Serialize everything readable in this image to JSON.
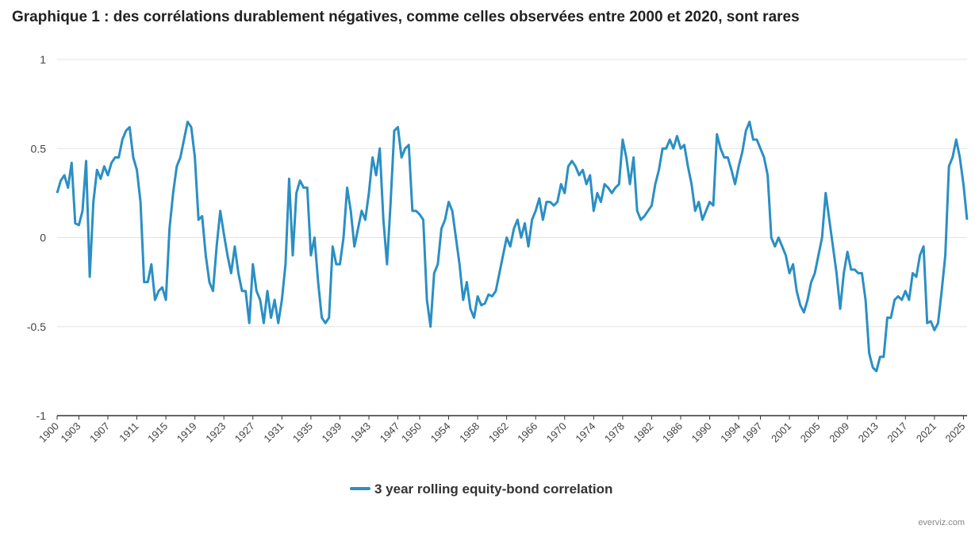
{
  "chart_data": {
    "type": "line",
    "title": "Graphique 1 : des corrélations durablement négatives, comme celles observées entre 2000 et 2020, sont rares",
    "credit": "everviz.com",
    "x": [
      1900,
      1900.5,
      1901,
      1901.5,
      1902,
      1902.5,
      1903,
      1903.5,
      1904,
      1904.5,
      1905,
      1905.5,
      1906,
      1906.5,
      1907,
      1907.5,
      1908,
      1908.5,
      1909,
      1909.5,
      1910,
      1910.5,
      1911,
      1911.5,
      1912,
      1912.5,
      1913,
      1913.5,
      1914,
      1914.5,
      1915,
      1915.5,
      1916,
      1916.5,
      1917,
      1917.5,
      1918,
      1918.5,
      1919,
      1919.5,
      1920,
      1920.5,
      1921,
      1921.5,
      1922,
      1922.5,
      1923,
      1923.5,
      1924,
      1924.5,
      1925,
      1925.5,
      1926,
      1926.5,
      1927,
      1927.5,
      1928,
      1928.5,
      1929,
      1929.5,
      1930,
      1930.5,
      1931,
      1931.5,
      1932,
      1932.5,
      1933,
      1933.5,
      1934,
      1934.5,
      1935,
      1935.5,
      1936,
      1936.5,
      1937,
      1937.5,
      1938,
      1938.5,
      1939,
      1939.5,
      1940,
      1940.5,
      1941,
      1941.5,
      1942,
      1942.5,
      1943,
      1943.5,
      1944,
      1944.5,
      1945,
      1945.5,
      1946,
      1946.5,
      1947,
      1947.5,
      1948,
      1948.5,
      1949,
      1949.5,
      1950,
      1950.5,
      1951,
      1951.5,
      1952,
      1952.5,
      1953,
      1953.5,
      1954,
      1954.5,
      1955,
      1955.5,
      1956,
      1956.5,
      1957,
      1957.5,
      1958,
      1958.5,
      1959,
      1959.5,
      1960,
      1960.5,
      1961,
      1961.5,
      1962,
      1962.5,
      1963,
      1963.5,
      1964,
      1964.5,
      1965,
      1965.5,
      1966,
      1966.5,
      1967,
      1967.5,
      1968,
      1968.5,
      1969,
      1969.5,
      1970,
      1970.5,
      1971,
      1971.5,
      1972,
      1972.5,
      1973,
      1973.5,
      1974,
      1974.5,
      1975,
      1975.5,
      1976,
      1976.5,
      1977,
      1977.5,
      1978,
      1978.5,
      1979,
      1979.5,
      1980,
      1980.5,
      1981,
      1981.5,
      1982,
      1982.5,
      1983,
      1983.5,
      1984,
      1984.5,
      1985,
      1985.5,
      1986,
      1986.5,
      1987,
      1987.5,
      1988,
      1988.5,
      1989,
      1989.5,
      1990,
      1990.5,
      1991,
      1991.5,
      1992,
      1992.5,
      1993,
      1993.5,
      1994,
      1994.5,
      1995,
      1995.5,
      1996,
      1996.5,
      1997,
      1997.5,
      1998,
      1998.5,
      1999,
      1999.5,
      2000,
      2000.5,
      2001,
      2001.5,
      2002,
      2002.5,
      2003,
      2003.5,
      2004,
      2004.5,
      2005,
      2005.5,
      2006,
      2006.5,
      2007,
      2007.5,
      2008,
      2008.5,
      2009,
      2009.5,
      2010,
      2010.5,
      2011,
      2011.5,
      2012,
      2012.5,
      2013,
      2013.5,
      2014,
      2014.5,
      2015,
      2015.5,
      2016,
      2016.5,
      2017,
      2017.5,
      2018,
      2018.5,
      2019,
      2019.5,
      2020,
      2020.5,
      2021,
      2021.5,
      2022,
      2022.5,
      2023,
      2023.5,
      2024,
      2024.5,
      2025,
      2025.5
    ],
    "series": [
      {
        "name": "3 year rolling equity-bond correlation",
        "color": "#2a8fc4",
        "values": [
          0.25,
          0.32,
          0.35,
          0.28,
          0.42,
          0.08,
          0.07,
          0.15,
          0.43,
          -0.22,
          0.2,
          0.38,
          0.33,
          0.4,
          0.35,
          0.42,
          0.45,
          0.45,
          0.55,
          0.6,
          0.62,
          0.45,
          0.38,
          0.2,
          -0.25,
          -0.25,
          -0.15,
          -0.35,
          -0.3,
          -0.28,
          -0.35,
          0.05,
          0.25,
          0.4,
          0.45,
          0.55,
          0.65,
          0.62,
          0.45,
          0.1,
          0.12,
          -0.1,
          -0.25,
          -0.3,
          -0.05,
          0.15,
          0.02,
          -0.1,
          -0.2,
          -0.05,
          -0.2,
          -0.3,
          -0.3,
          -0.48,
          -0.15,
          -0.3,
          -0.35,
          -0.48,
          -0.3,
          -0.45,
          -0.35,
          -0.48,
          -0.35,
          -0.15,
          0.33,
          -0.1,
          0.25,
          0.32,
          0.28,
          0.28,
          -0.1,
          0,
          -0.25,
          -0.45,
          -0.48,
          -0.45,
          -0.05,
          -0.15,
          -0.15,
          0,
          0.28,
          0.15,
          -0.05,
          0.05,
          0.15,
          0.1,
          0.25,
          0.45,
          0.35,
          0.5,
          0.1,
          -0.15,
          0.2,
          0.6,
          0.62,
          0.45,
          0.5,
          0.52,
          0.15,
          0.15,
          0.13,
          0.1,
          -0.35,
          -0.5,
          -0.2,
          -0.15,
          0.05,
          0.1,
          0.2,
          0.15,
          0,
          -0.15,
          -0.35,
          -0.25,
          -0.4,
          -0.45,
          -0.33,
          -0.38,
          -0.37,
          -0.32,
          -0.33,
          -0.3,
          -0.2,
          -0.1,
          0,
          -0.05,
          0.05,
          0.1,
          0,
          0.08,
          -0.05,
          0.1,
          0.15,
          0.22,
          0.1,
          0.2,
          0.2,
          0.18,
          0.2,
          0.3,
          0.25,
          0.4,
          0.43,
          0.4,
          0.35,
          0.38,
          0.3,
          0.35,
          0.15,
          0.25,
          0.2,
          0.3,
          0.28,
          0.25,
          0.28,
          0.3,
          0.55,
          0.45,
          0.3,
          0.45,
          0.15,
          0.1,
          0.12,
          0.15,
          0.18,
          0.3,
          0.38,
          0.5,
          0.5,
          0.55,
          0.5,
          0.57,
          0.5,
          0.52,
          0.4,
          0.3,
          0.15,
          0.2,
          0.1,
          0.15,
          0.2,
          0.18,
          0.58,
          0.5,
          0.45,
          0.45,
          0.38,
          0.3,
          0.4,
          0.48,
          0.6,
          0.65,
          0.55,
          0.55,
          0.5,
          0.45,
          0.35,
          0,
          -0.05,
          0,
          -0.05,
          -0.1,
          -0.2,
          -0.15,
          -0.3,
          -0.38,
          -0.42,
          -0.35,
          -0.25,
          -0.2,
          -0.1,
          0,
          0.25,
          0.1,
          -0.05,
          -0.2,
          -0.4,
          -0.2,
          -0.08,
          -0.18,
          -0.18,
          -0.2,
          -0.2,
          -0.35,
          -0.65,
          -0.73,
          -0.75,
          -0.67,
          -0.67,
          -0.45,
          -0.45,
          -0.35,
          -0.33,
          -0.35,
          -0.3,
          -0.35,
          -0.2,
          -0.22,
          -0.1,
          -0.05,
          -0.48,
          -0.47,
          -0.52,
          -0.48,
          -0.3,
          -0.1,
          0.4,
          0.45,
          0.55,
          0.45,
          0.3,
          0.1
        ]
      }
    ],
    "xlim": [
      1900,
      2025.5
    ],
    "xticks": [
      1900,
      1903,
      1907,
      1911,
      1915,
      1919,
      1923,
      1927,
      1931,
      1935,
      1939,
      1943,
      1947,
      1950,
      1954,
      1958,
      1962,
      1966,
      1970,
      1974,
      1978,
      1982,
      1986,
      1990,
      1994,
      1997,
      2001,
      2005,
      2009,
      2013,
      2017,
      2021,
      2025
    ],
    "ylim": [
      -1,
      1
    ],
    "yticks": [
      -1,
      -0.5,
      0,
      0.5,
      1
    ],
    "grid": true,
    "legend": "bottom"
  }
}
